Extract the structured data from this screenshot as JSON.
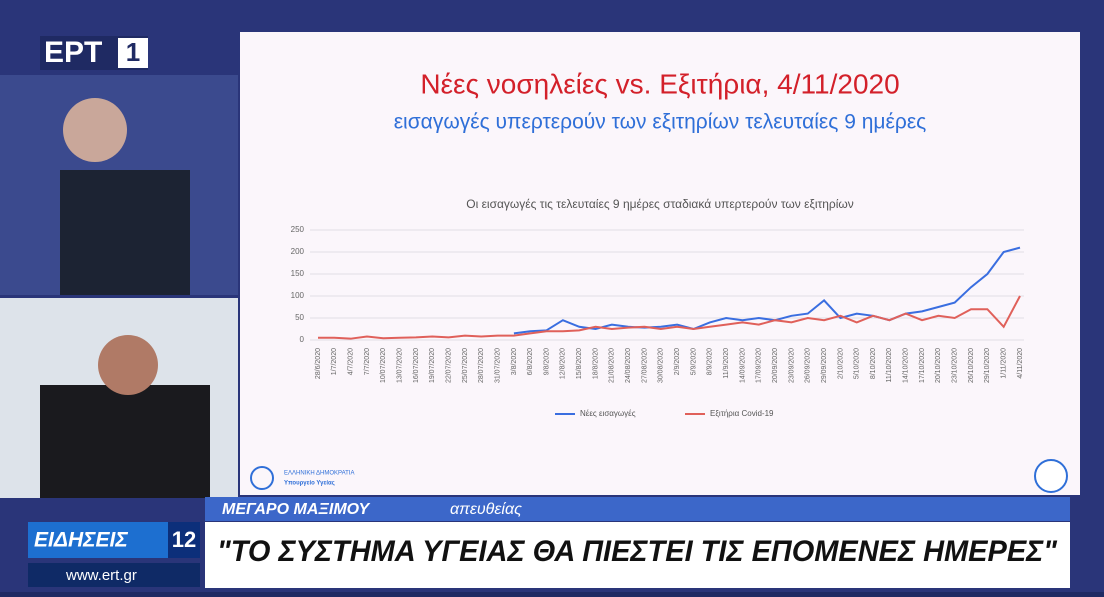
{
  "broadcast": {
    "logo": "ΕΡΤ",
    "channel": "1",
    "news_label": "ΕΙΔΗΣΕΙΣ",
    "news_time": "12",
    "website": "www.ert.gr",
    "location": "ΜΕΓΑΡΟ ΜΑΞΙΜΟΥ",
    "status": "απευθείας",
    "headline": "\"ΤΟ ΣΥΣΤΗΜΑ ΥΓΕΙΑΣ ΘΑ ΠΙΕΣΤΕΙ ΤΙΣ ΕΠΟΜΕΝΕΣ ΗΜΕΡΕΣ\""
  },
  "slide": {
    "title": "Νέες νοσηλείες vs. Εξιτήρια, 4/11/2020",
    "subtitle": "εισαγωγές υπερτερούν των εξιτηρίων τελευταίες 9 ημέρες",
    "footer_line1": "ΕΛΛΗΝΙΚΗ ΔΗΜΟΚΡΑΤΙΑ",
    "footer_line2": "Υπουργείο Υγείας"
  },
  "chart_data": {
    "type": "line",
    "title": "Οι εισαγωγές τις τελευταίες 9 ημέρες σταδιακά υπερτερούν των εξιτηρίων",
    "categories": [
      "28/6/2020",
      "1/7/2020",
      "4/7/2020",
      "7/7/2020",
      "10/07/2020",
      "13/07/2020",
      "16/07/2020",
      "19/07/2020",
      "22/07/2020",
      "25/07/2020",
      "28/07/2020",
      "31/07/2020",
      "3/8/2020",
      "6/8/2020",
      "9/8/2020",
      "12/8/2020",
      "15/8/2020",
      "18/8/2020",
      "21/08/2020",
      "24/08/2020",
      "27/08/2020",
      "30/08/2020",
      "2/9/2020",
      "5/9/2020",
      "8/9/2020",
      "11/9/2020",
      "14/09/2020",
      "17/09/2020",
      "20/09/2020",
      "23/09/2020",
      "26/09/2020",
      "29/09/2020",
      "2/10/2020",
      "5/10/2020",
      "8/10/2020",
      "11/10/2020",
      "14/10/2020",
      "17/10/2020",
      "20/10/2020",
      "23/10/2020",
      "26/10/2020",
      "29/10/2020",
      "1/11/2020",
      "4/11/2020"
    ],
    "series": [
      {
        "name": "Νέες εισαγωγές",
        "color": "#3a6ee0",
        "values": [
          null,
          null,
          null,
          null,
          null,
          null,
          null,
          null,
          null,
          null,
          null,
          null,
          15,
          20,
          22,
          45,
          30,
          25,
          35,
          30,
          28,
          30,
          35,
          25,
          40,
          50,
          45,
          50,
          45,
          55,
          60,
          90,
          50,
          60,
          55,
          45,
          60,
          65,
          75,
          85,
          120,
          150,
          200,
          210
        ]
      },
      {
        "name": "Εξιτήρια Covid-19",
        "color": "#e0605a",
        "values": [
          5,
          5,
          3,
          8,
          4,
          5,
          6,
          8,
          6,
          10,
          8,
          10,
          10,
          15,
          20,
          20,
          22,
          30,
          25,
          28,
          30,
          25,
          30,
          25,
          30,
          35,
          40,
          35,
          45,
          40,
          50,
          45,
          55,
          40,
          55,
          45,
          60,
          45,
          55,
          50,
          70,
          70,
          30,
          100
        ]
      }
    ],
    "ylim": [
      0,
      250
    ],
    "yticks": [
      0,
      50,
      100,
      150,
      200,
      250
    ],
    "grid": true,
    "legend": "bottom"
  }
}
